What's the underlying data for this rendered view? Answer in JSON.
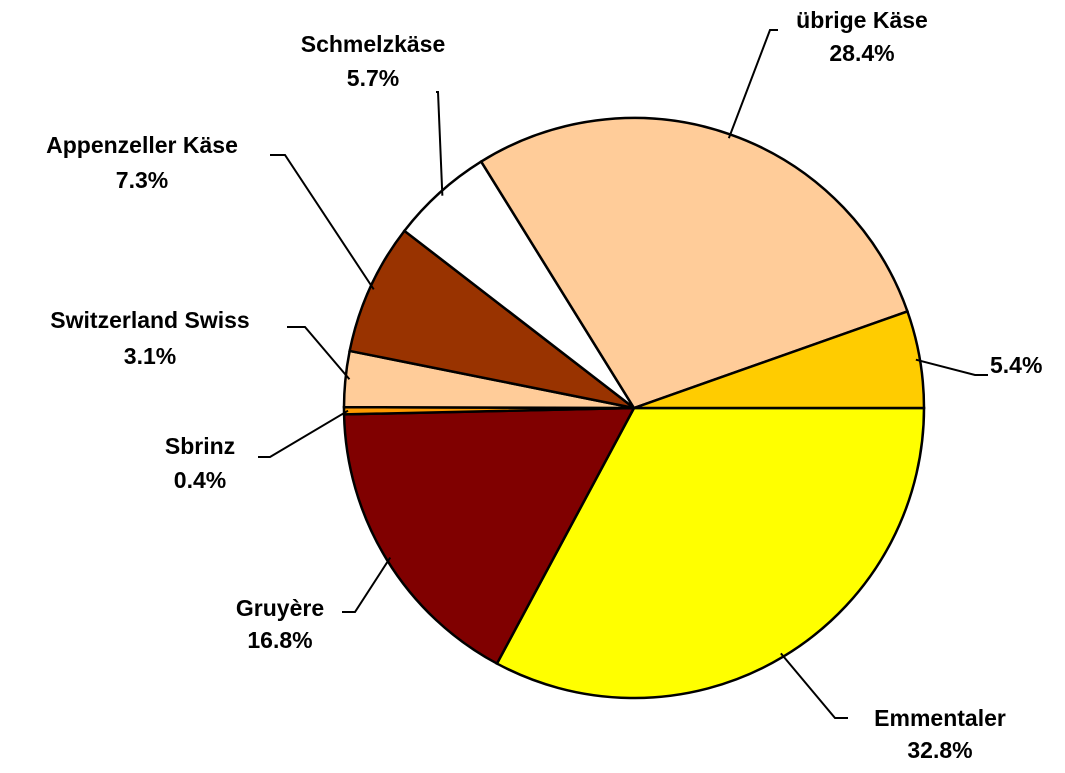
{
  "chart_data": {
    "type": "pie",
    "categories": [
      "Emmentaler",
      "Gruyère",
      "Sbrinz",
      "Switzerland Swiss",
      "Appenzeller Käse",
      "Schmelzkäse",
      "übrige Käse",
      null
    ],
    "values": [
      32.8,
      16.8,
      0.4,
      3.1,
      7.3,
      5.7,
      28.4,
      5.4
    ],
    "value_labels": [
      "32.8%",
      "16.8%",
      "0.4%",
      "3.1%",
      "7.3%",
      "5.7%",
      "28.4%",
      "5.4%"
    ],
    "colors": [
      "#FFFF00",
      "#800000",
      "#FF9900",
      "#FFCC99",
      "#993300",
      "#FFFFFF",
      "#FFCC99",
      "#FFCC00"
    ]
  }
}
